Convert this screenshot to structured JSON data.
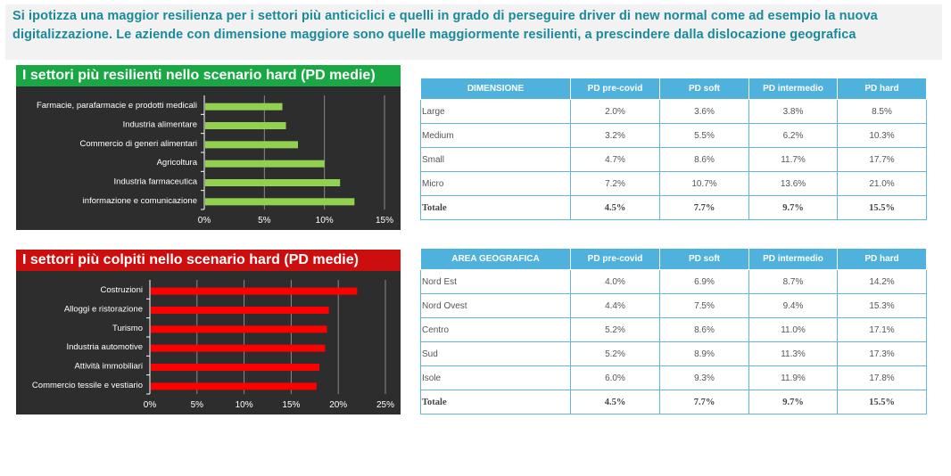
{
  "banner": {
    "text": "Si ipotizza una maggior resilienza per i settori più anticiclici e quelli in grado di perseguire driver di new normal come ad esempio la nuova digitalizzazione. Le aziende con dimensione maggiore sono quelle maggiormente resilienti, a prescindere dalla dislocazione geografica"
  },
  "colors": {
    "green": "#1aa845",
    "red": "#cc0e0e",
    "bar_green": "#92d050",
    "bar_red": "#ff0000",
    "table_header": "#4fb2dc",
    "panel": "#2d2d2d"
  },
  "chart_data": [
    {
      "type": "bar",
      "orientation": "horizontal",
      "title": "I settori più resilienti nello scenario hard (PD medie)",
      "categories": [
        "Farmacie, parafarmacie e prodotti medicali",
        "Industria alimentare",
        "Commercio di generi alimentari",
        "Agricoltura",
        "Industria farmaceutica",
        "informazione e comunicazione"
      ],
      "values": [
        6.5,
        6.8,
        7.8,
        10.0,
        11.3,
        12.5
      ],
      "ticks": [
        "0%",
        "5%",
        "10%",
        "15%"
      ],
      "xlim": [
        0,
        15
      ],
      "grid": true
    },
    {
      "type": "bar",
      "orientation": "horizontal",
      "title": "I settori più colpiti nello scenario hard (PD medie)",
      "categories": [
        "Costruzioni",
        "Alloggi e ristorazione",
        "Turismo",
        "Industria automotive",
        "Attività immobiliari",
        "Commercio tessile e vestiario"
      ],
      "values": [
        22.0,
        19.0,
        18.8,
        18.6,
        18.0,
        17.7
      ],
      "ticks": [
        "0%",
        "5%",
        "10%",
        "15%",
        "20%",
        "25%"
      ],
      "xlim": [
        0,
        25
      ],
      "grid": true
    },
    {
      "type": "table",
      "headers": [
        "DIMENSIONE",
        "PD pre-covid",
        "PD soft",
        "PD intermedio",
        "PD hard"
      ],
      "rows": [
        [
          "Large",
          "2.0%",
          "3.6%",
          "3.8%",
          "8.5%"
        ],
        [
          "Medium",
          "3.2%",
          "5.5%",
          "6.2%",
          "10.3%"
        ],
        [
          "Small",
          "4.7%",
          "8.6%",
          "11.7%",
          "17.7%"
        ],
        [
          "Micro",
          "7.2%",
          "10.7%",
          "13.6%",
          "21.0%"
        ],
        [
          "Totale",
          "4.5%",
          "7.7%",
          "9.7%",
          "15.5%"
        ]
      ]
    },
    {
      "type": "table",
      "headers": [
        "AREA GEOGRAFICA",
        "PD pre-covid",
        "PD soft",
        "PD intermedio",
        "PD hard"
      ],
      "rows": [
        [
          "Nord Est",
          "4.0%",
          "6.9%",
          "8.7%",
          "14.2%"
        ],
        [
          "Nord Ovest",
          "4.4%",
          "7.5%",
          "9.4%",
          "15.3%"
        ],
        [
          "Centro",
          "5.2%",
          "8.6%",
          "11.0%",
          "17.1%"
        ],
        [
          "Sud",
          "5.2%",
          "8.9%",
          "11.3%",
          "17.3%"
        ],
        [
          "Isole",
          "6.0%",
          "9.3%",
          "11.9%",
          "17.8%"
        ],
        [
          "Totale",
          "4.5%",
          "7.7%",
          "9.7%",
          "15.5%"
        ]
      ]
    }
  ]
}
